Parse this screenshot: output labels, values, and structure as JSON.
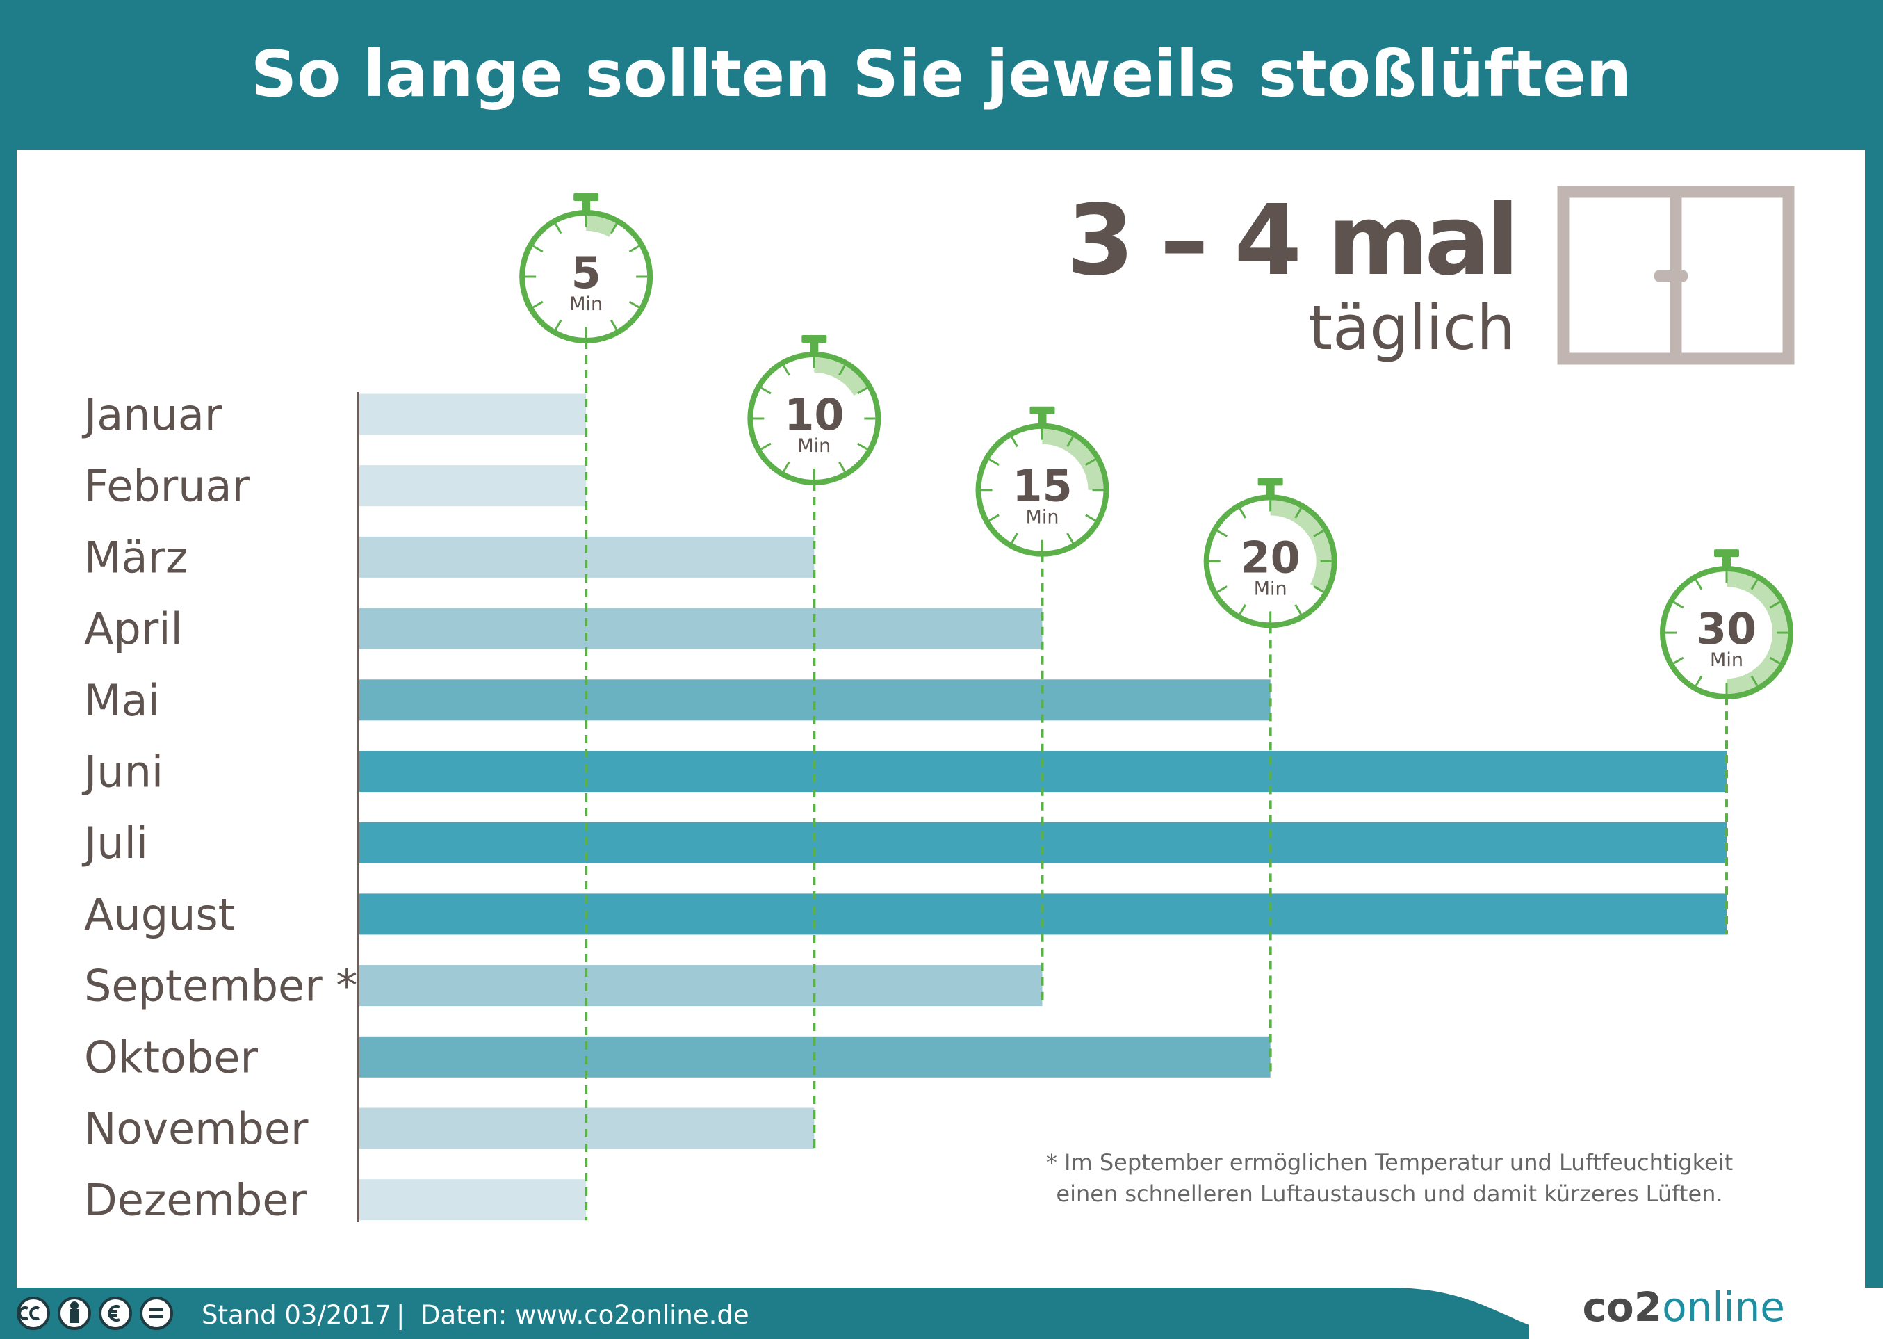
{
  "chart_data": {
    "type": "bar",
    "orientation": "horizontal",
    "title": "So lange sollten Sie jeweils stoßlüften",
    "categories": [
      "Januar",
      "Februar",
      "März",
      "April",
      "Mai",
      "Juni",
      "Juli",
      "August",
      "September *",
      "Oktober",
      "November",
      "Dezember"
    ],
    "values": [
      5,
      5,
      10,
      15,
      20,
      30,
      30,
      30,
      15,
      20,
      10,
      5
    ],
    "colors": [
      "#d3e4ea",
      "#d3e4ea",
      "#bcd7e0",
      "#a0c9d6",
      "#6ab1c1",
      "#41a4b8",
      "#41a4b8",
      "#41a4b8",
      "#a0c9d6",
      "#6ab1c1",
      "#bcd7e0",
      "#d3e4ea"
    ],
    "xlim": [
      0,
      30
    ],
    "markers": [
      5,
      10,
      15,
      20,
      30
    ],
    "marker_unit": "Min",
    "marker_color": "#5cb04a",
    "headline": "3 – 4 mal",
    "subheadline": "täglich",
    "footnote": [
      "* Im September ermöglichen Temperatur und Luftfeuchtigkeit",
      "einen schnelleren Luftaustausch und damit kürzeres Lüften."
    ],
    "footer": {
      "stand": "Stand 03/2017",
      "separator": "|",
      "source": "Daten: www.co2online.de",
      "logo": [
        "co2",
        "online"
      ]
    }
  }
}
